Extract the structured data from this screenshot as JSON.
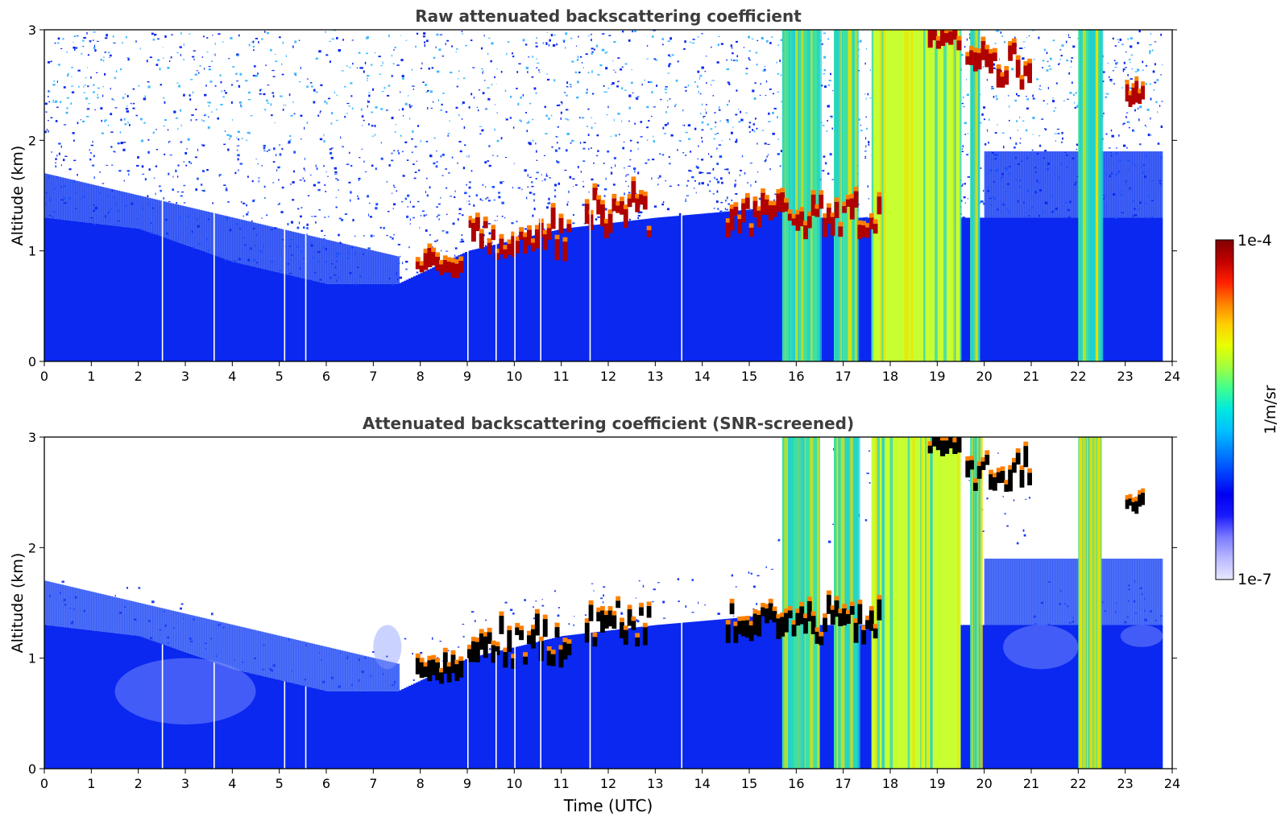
{
  "chart_data": [
    {
      "type": "heatmap",
      "title": "Raw attenuated backscattering coefficient",
      "xlabel": "",
      "ylabel": "Altitude (km)",
      "xlim": [
        0,
        24
      ],
      "ylim": [
        0,
        3
      ],
      "xticks": [
        "0",
        "1",
        "2",
        "3",
        "4",
        "5",
        "6",
        "7",
        "8",
        "9",
        "10",
        "11",
        "12",
        "13",
        "14",
        "15",
        "16",
        "17",
        "18",
        "19",
        "20",
        "21",
        "22",
        "23",
        "24"
      ],
      "yticks": [
        "0",
        "1",
        "2",
        "3"
      ],
      "data_end_hour": 23.8,
      "features": {
        "boundary_layer_top_km": [
          [
            0,
            1.3
          ],
          [
            2,
            1.2
          ],
          [
            4,
            0.9
          ],
          [
            6,
            0.7
          ],
          [
            7.5,
            0.7
          ],
          [
            8,
            0.8
          ],
          [
            9,
            1.0
          ],
          [
            11,
            1.2
          ],
          [
            13,
            1.3
          ],
          [
            15.7,
            1.4
          ]
        ],
        "cloud_layer": [
          {
            "from": 7.9,
            "to": 8.9,
            "base_km": 0.75,
            "top_km": 0.95
          },
          {
            "from": 9.0,
            "to": 11.2,
            "base_km": 0.9,
            "top_km": 1.45
          },
          {
            "from": 11.5,
            "to": 12.9,
            "base_km": 1.1,
            "top_km": 1.7
          },
          {
            "from": 14.5,
            "to": 17.8,
            "base_km": 1.1,
            "top_km": 1.6
          },
          {
            "from": 18.8,
            "to": 19.5,
            "base_km": 2.8,
            "top_km": 3.0
          },
          {
            "from": 19.6,
            "to": 21.0,
            "base_km": 2.45,
            "top_km": 3.0
          },
          {
            "from": 23.0,
            "to": 23.4,
            "base_km": 2.3,
            "top_km": 2.45
          }
        ],
        "precipitation_columns_hours": [
          [
            15.7,
            16.5
          ],
          [
            16.8,
            17.3
          ],
          [
            17.6,
            19.5
          ],
          [
            19.7,
            19.9
          ],
          [
            22.0,
            22.5
          ]
        ],
        "signal_gaps_hours": [
          2.5,
          3.6,
          5.1,
          5.55,
          9.0,
          9.6,
          10.0,
          10.55,
          11.6,
          13.55
        ]
      }
    },
    {
      "type": "heatmap",
      "title": "Attenuated backscattering coefficient (SNR-screened)",
      "xlabel": "Time (UTC)",
      "ylabel": "Altitude (km)",
      "xlim": [
        0,
        24
      ],
      "ylim": [
        0,
        3
      ],
      "xticks": [
        "0",
        "1",
        "2",
        "3",
        "4",
        "5",
        "6",
        "7",
        "8",
        "9",
        "10",
        "11",
        "12",
        "13",
        "14",
        "15",
        "16",
        "17",
        "18",
        "19",
        "20",
        "21",
        "22",
        "23",
        "24"
      ],
      "yticks": [
        "0",
        "1",
        "2",
        "3"
      ],
      "data_end_hour": 23.8
    }
  ],
  "colorbar": {
    "label": "1/m/sr",
    "max_label": "1e-4",
    "min_label": "1e-7",
    "scale": "log",
    "range": [
      1e-07,
      0.0001
    ],
    "colors": [
      "#e8e8ff",
      "#b8b8ff",
      "#7b7bff",
      "#1a1aff",
      "#0000f0",
      "#0040ff",
      "#0080ff",
      "#00c0ff",
      "#00e8e0",
      "#40ff90",
      "#a0ff40",
      "#e8ff00",
      "#ffd000",
      "#ff8000",
      "#ff2000",
      "#c00000",
      "#800000"
    ]
  },
  "colors": {
    "title": "#3d3d3d",
    "background_blue": "#0a28f0",
    "noise_white": "#ffffff"
  }
}
